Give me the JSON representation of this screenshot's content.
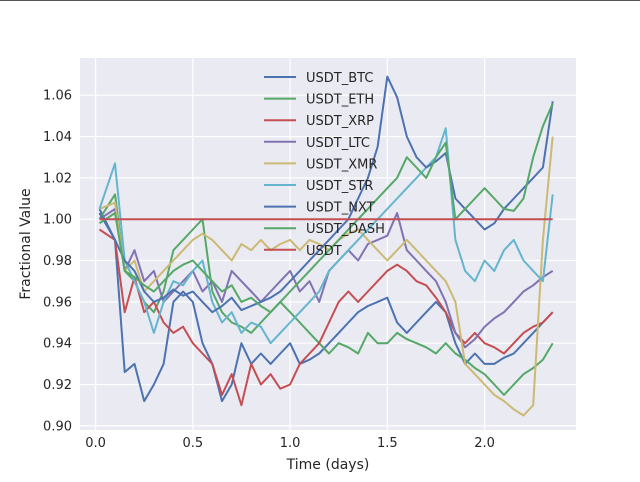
{
  "chart_data": {
    "type": "line",
    "title": "",
    "xlabel": "Time (days)",
    "ylabel": "Fractional Value",
    "xlim": [
      -0.08,
      2.47
    ],
    "ylim": [
      0.898,
      1.078
    ],
    "xticks": [
      0.0,
      0.5,
      1.0,
      1.5,
      2.0
    ],
    "xtick_labels": [
      "0.0",
      "0.5",
      "1.0",
      "1.5",
      "2.0"
    ],
    "yticks": [
      0.9,
      0.92,
      0.94,
      0.96,
      0.98,
      1.0,
      1.02,
      1.04,
      1.06
    ],
    "ytick_labels": [
      "0.90",
      "0.92",
      "0.94",
      "0.96",
      "0.98",
      "1.00",
      "1.02",
      "1.04",
      "1.06"
    ],
    "grid": true,
    "background": "#EAEAF2",
    "legend_position": "upper-center",
    "series": [
      {
        "name": "USDT_BTC",
        "color": "#4C72B0",
        "x": [
          0.02,
          0.1,
          0.15,
          0.2,
          0.25,
          0.3,
          0.35,
          0.4,
          0.45,
          0.5,
          0.55,
          0.6,
          0.65,
          0.7,
          0.75,
          0.8,
          0.85,
          0.9,
          0.95,
          1.0,
          1.05,
          1.1,
          1.15,
          1.2,
          1.25,
          1.3,
          1.35,
          1.4,
          1.45,
          1.5,
          1.55,
          1.6,
          1.65,
          1.7,
          1.75,
          1.8,
          1.85,
          1.9,
          1.95,
          2.0,
          2.05,
          2.1,
          2.15,
          2.2,
          2.25,
          2.3,
          2.35
        ],
        "values": [
          1.005,
          0.99,
          0.926,
          0.93,
          0.912,
          0.92,
          0.93,
          0.96,
          0.965,
          0.96,
          0.94,
          0.93,
          0.912,
          0.92,
          0.94,
          0.93,
          0.935,
          0.93,
          0.935,
          0.94,
          0.93,
          0.932,
          0.935,
          0.94,
          0.945,
          0.95,
          0.955,
          0.958,
          0.96,
          0.962,
          0.95,
          0.945,
          0.95,
          0.955,
          0.96,
          0.955,
          0.94,
          0.93,
          0.935,
          0.93,
          0.93,
          0.933,
          0.935,
          0.94,
          0.945,
          0.95,
          0.955
        ]
      },
      {
        "name": "USDT_ETH",
        "color": "#55A868",
        "x": [
          0.02,
          0.1,
          0.15,
          0.2,
          0.25,
          0.3,
          0.35,
          0.4,
          0.45,
          0.5,
          0.55,
          0.6,
          0.65,
          0.7,
          0.75,
          0.8,
          0.85,
          0.9,
          0.95,
          1.0,
          1.05,
          1.1,
          1.15,
          1.2,
          1.25,
          1.3,
          1.35,
          1.4,
          1.45,
          1.5,
          1.55,
          1.6,
          1.65,
          1.7,
          1.75,
          1.8,
          1.85,
          1.9,
          1.95,
          2.0,
          2.05,
          2.1,
          2.15,
          2.2,
          2.25,
          2.3,
          2.35
        ],
        "values": [
          1.0,
          1.012,
          0.975,
          0.97,
          0.96,
          0.955,
          0.965,
          0.985,
          0.99,
          0.995,
          1.0,
          0.965,
          0.955,
          0.95,
          0.948,
          0.945,
          0.95,
          0.955,
          0.96,
          0.955,
          0.95,
          0.945,
          0.94,
          0.935,
          0.94,
          0.938,
          0.935,
          0.945,
          0.94,
          0.94,
          0.945,
          0.942,
          0.94,
          0.938,
          0.935,
          0.94,
          0.935,
          0.932,
          0.928,
          0.925,
          0.92,
          0.915,
          0.92,
          0.925,
          0.928,
          0.932,
          0.94
        ]
      },
      {
        "name": "USDT_XRP",
        "color": "#C44E52",
        "x": [
          0.02,
          0.1,
          0.15,
          0.2,
          0.25,
          0.3,
          0.35,
          0.4,
          0.45,
          0.5,
          0.55,
          0.6,
          0.65,
          0.7,
          0.75,
          0.8,
          0.85,
          0.9,
          0.95,
          1.0,
          1.05,
          1.1,
          1.15,
          1.2,
          1.25,
          1.3,
          1.35,
          1.4,
          1.45,
          1.5,
          1.55,
          1.6,
          1.65,
          1.7,
          1.75,
          1.8,
          1.85,
          1.9,
          1.95,
          2.0,
          2.05,
          2.1,
          2.15,
          2.2,
          2.25,
          2.3,
          2.35
        ],
        "values": [
          0.995,
          0.99,
          0.955,
          0.972,
          0.955,
          0.96,
          0.95,
          0.945,
          0.948,
          0.94,
          0.935,
          0.93,
          0.915,
          0.925,
          0.91,
          0.93,
          0.92,
          0.925,
          0.918,
          0.92,
          0.93,
          0.935,
          0.94,
          0.95,
          0.96,
          0.965,
          0.96,
          0.965,
          0.97,
          0.975,
          0.978,
          0.975,
          0.97,
          0.968,
          0.962,
          0.955,
          0.945,
          0.94,
          0.945,
          0.94,
          0.938,
          0.935,
          0.94,
          0.945,
          0.948,
          0.95,
          0.955
        ]
      },
      {
        "name": "USDT_LTC",
        "color": "#8172B2",
        "x": [
          0.02,
          0.1,
          0.15,
          0.2,
          0.25,
          0.3,
          0.35,
          0.4,
          0.45,
          0.5,
          0.55,
          0.6,
          0.65,
          0.7,
          0.75,
          0.8,
          0.85,
          0.9,
          0.95,
          1.0,
          1.05,
          1.1,
          1.15,
          1.2,
          1.25,
          1.3,
          1.35,
          1.4,
          1.45,
          1.5,
          1.55,
          1.6,
          1.65,
          1.7,
          1.75,
          1.8,
          1.85,
          1.9,
          1.95,
          2.0,
          2.05,
          2.1,
          2.15,
          2.2,
          2.25,
          2.3,
          2.35
        ],
        "values": [
          1.0,
          1.005,
          0.975,
          0.985,
          0.97,
          0.975,
          0.96,
          0.965,
          0.97,
          0.975,
          0.965,
          0.97,
          0.96,
          0.975,
          0.97,
          0.965,
          0.96,
          0.965,
          0.97,
          0.975,
          0.965,
          0.97,
          0.96,
          0.975,
          0.98,
          0.985,
          0.98,
          0.988,
          0.99,
          0.992,
          1.003,
          0.985,
          0.98,
          0.975,
          0.97,
          0.96,
          0.945,
          0.938,
          0.942,
          0.948,
          0.952,
          0.955,
          0.96,
          0.965,
          0.968,
          0.972,
          0.975
        ]
      },
      {
        "name": "USDT_XMR",
        "color": "#CCB974",
        "x": [
          0.02,
          0.1,
          0.15,
          0.2,
          0.25,
          0.3,
          0.35,
          0.4,
          0.45,
          0.5,
          0.55,
          0.6,
          0.65,
          0.7,
          0.75,
          0.8,
          0.85,
          0.9,
          0.95,
          1.0,
          1.05,
          1.1,
          1.15,
          1.2,
          1.25,
          1.3,
          1.35,
          1.4,
          1.45,
          1.5,
          1.55,
          1.6,
          1.65,
          1.7,
          1.75,
          1.8,
          1.85,
          1.9,
          1.95,
          2.0,
          2.05,
          2.1,
          2.15,
          2.2,
          2.25,
          2.3,
          2.35
        ],
        "values": [
          1.005,
          1.008,
          0.975,
          0.98,
          0.965,
          0.97,
          0.975,
          0.98,
          0.985,
          0.99,
          0.993,
          0.99,
          0.985,
          0.98,
          0.988,
          0.985,
          0.99,
          0.985,
          0.988,
          0.99,
          0.985,
          0.99,
          0.988,
          0.985,
          0.99,
          0.993,
          0.995,
          0.99,
          0.985,
          0.98,
          0.985,
          0.99,
          0.985,
          0.98,
          0.975,
          0.97,
          0.96,
          0.93,
          0.925,
          0.92,
          0.915,
          0.912,
          0.908,
          0.905,
          0.91,
          0.99,
          1.04
        ]
      },
      {
        "name": "USDT_STR",
        "color": "#64B5CD",
        "x": [
          0.02,
          0.1,
          0.15,
          0.2,
          0.25,
          0.3,
          0.35,
          0.4,
          0.45,
          0.5,
          0.55,
          0.6,
          0.65,
          0.7,
          0.75,
          0.8,
          0.85,
          0.9,
          0.95,
          1.0,
          1.05,
          1.1,
          1.15,
          1.2,
          1.25,
          1.3,
          1.35,
          1.4,
          1.45,
          1.5,
          1.55,
          1.6,
          1.65,
          1.7,
          1.75,
          1.8,
          1.85,
          1.9,
          1.95,
          2.0,
          2.05,
          2.1,
          2.15,
          2.2,
          2.25,
          2.3,
          2.35
        ],
        "values": [
          1.005,
          1.027,
          0.98,
          0.97,
          0.96,
          0.945,
          0.96,
          0.97,
          0.968,
          0.975,
          0.98,
          0.96,
          0.95,
          0.955,
          0.945,
          0.95,
          0.948,
          0.94,
          0.945,
          0.95,
          0.955,
          0.96,
          0.965,
          0.975,
          0.98,
          0.985,
          0.99,
          0.995,
          1.0,
          1.005,
          1.01,
          1.015,
          1.02,
          1.025,
          1.03,
          1.044,
          0.99,
          0.975,
          0.97,
          0.98,
          0.975,
          0.985,
          0.99,
          0.98,
          0.975,
          0.97,
          1.012
        ]
      },
      {
        "name": "USDT_NXT",
        "color": "#4C72B0",
        "x": [
          0.02,
          0.1,
          0.15,
          0.2,
          0.25,
          0.3,
          0.35,
          0.4,
          0.45,
          0.5,
          0.55,
          0.6,
          0.65,
          0.7,
          0.75,
          0.8,
          0.85,
          0.9,
          0.95,
          1.0,
          1.05,
          1.1,
          1.15,
          1.2,
          1.25,
          1.3,
          1.35,
          1.4,
          1.45,
          1.5,
          1.55,
          1.6,
          1.65,
          1.7,
          1.75,
          1.8,
          1.85,
          1.9,
          1.95,
          2.0,
          2.05,
          2.1,
          2.15,
          2.2,
          2.25,
          2.3,
          2.35
        ],
        "values": [
          1.003,
          0.99,
          0.98,
          0.975,
          0.965,
          0.96,
          0.962,
          0.966,
          0.963,
          0.965,
          0.96,
          0.955,
          0.958,
          0.962,
          0.956,
          0.958,
          0.96,
          0.962,
          0.965,
          0.97,
          0.975,
          0.98,
          0.985,
          0.99,
          0.995,
          1.0,
          1.01,
          1.02,
          1.035,
          1.069,
          1.059,
          1.04,
          1.03,
          1.025,
          1.028,
          1.032,
          1.01,
          1.005,
          1.0,
          0.995,
          0.998,
          1.005,
          1.01,
          1.015,
          1.02,
          1.025,
          1.057
        ]
      },
      {
        "name": "USDT_DASH",
        "color": "#55A868",
        "x": [
          0.02,
          0.1,
          0.15,
          0.2,
          0.25,
          0.3,
          0.35,
          0.4,
          0.45,
          0.5,
          0.55,
          0.6,
          0.65,
          0.7,
          0.75,
          0.8,
          0.85,
          0.9,
          0.95,
          1.0,
          1.05,
          1.1,
          1.15,
          1.2,
          1.25,
          1.3,
          1.35,
          1.4,
          1.45,
          1.5,
          1.55,
          1.6,
          1.65,
          1.7,
          1.75,
          1.8,
          1.85,
          1.9,
          1.95,
          2.0,
          2.05,
          2.1,
          2.15,
          2.2,
          2.25,
          2.3,
          2.35
        ],
        "values": [
          0.998,
          1.003,
          0.975,
          0.972,
          0.968,
          0.965,
          0.97,
          0.975,
          0.978,
          0.98,
          0.975,
          0.97,
          0.965,
          0.968,
          0.96,
          0.962,
          0.958,
          0.955,
          0.96,
          0.965,
          0.97,
          0.975,
          0.98,
          0.985,
          0.99,
          0.995,
          1.0,
          1.005,
          1.01,
          1.015,
          1.02,
          1.03,
          1.025,
          1.02,
          1.03,
          1.037,
          1.0,
          1.005,
          1.01,
          1.015,
          1.01,
          1.005,
          1.004,
          1.01,
          1.03,
          1.045,
          1.056
        ]
      },
      {
        "name": "USDT",
        "color": "#C44E52",
        "x": [
          0.02,
          2.35
        ],
        "values": [
          1.0,
          1.0
        ]
      }
    ]
  }
}
